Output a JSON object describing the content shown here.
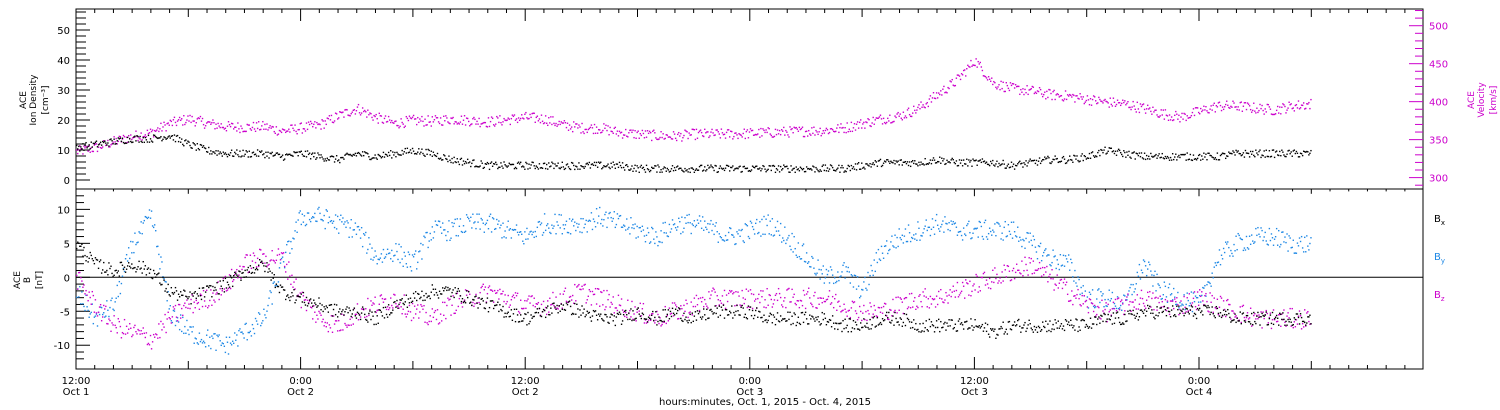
{
  "chart_data": [
    {
      "type": "scatter",
      "panel": "top",
      "ylabel_left": [
        "ACE",
        "Ion Density",
        "[cm⁻³]"
      ],
      "ylabel_right": [
        "ACE",
        "Velocity",
        "[km/s]"
      ],
      "ylim_left": [
        -3,
        57
      ],
      "ylim_right": [
        285,
        522
      ],
      "yticks_left": [
        0,
        10,
        20,
        30,
        40,
        50
      ],
      "yticks_right": [
        300,
        350,
        400,
        450,
        500
      ],
      "colors": {
        "density": "#000000",
        "velocity": "#cc00cc"
      },
      "series": [
        {
          "axis": "left",
          "x_hours": [
            0,
            1,
            2,
            3,
            4,
            5,
            6,
            7,
            8,
            9,
            10,
            11,
            12,
            13,
            14,
            15,
            16,
            17,
            18,
            19,
            20,
            21,
            22,
            23,
            24,
            25,
            26,
            27,
            28,
            29,
            30,
            31,
            32,
            33,
            34,
            35,
            36,
            37,
            38,
            39,
            40,
            41,
            42,
            43,
            44,
            45,
            46,
            47,
            48,
            49,
            50,
            51,
            52,
            53,
            54,
            55,
            56,
            57,
            58,
            59,
            60,
            61,
            62,
            63,
            64,
            65,
            66
          ],
          "values": [
            11,
            12,
            13,
            14,
            14,
            15,
            12,
            10,
            9,
            9,
            9,
            8,
            9,
            8,
            7,
            9,
            8,
            9,
            10,
            9,
            7,
            6,
            5,
            5,
            5,
            5,
            5,
            5,
            5,
            5,
            4,
            4,
            4,
            4,
            4,
            4,
            4,
            4,
            4,
            4,
            4,
            4,
            5,
            6,
            6,
            6,
            7,
            6,
            6,
            6,
            5,
            6,
            7,
            7,
            8,
            10,
            9,
            8,
            8,
            8,
            8,
            8,
            9,
            9,
            9,
            9,
            9
          ]
        },
        {
          "axis": "right",
          "x_hours": [
            0,
            1,
            2,
            3,
            4,
            5,
            6,
            7,
            8,
            9,
            10,
            11,
            12,
            13,
            14,
            15,
            16,
            17,
            18,
            19,
            20,
            21,
            22,
            23,
            24,
            25,
            26,
            27,
            28,
            29,
            30,
            31,
            32,
            33,
            34,
            35,
            36,
            37,
            38,
            39,
            40,
            41,
            42,
            43,
            44,
            45,
            46,
            47,
            48,
            49,
            50,
            51,
            52,
            53,
            54,
            55,
            56,
            57,
            58,
            59,
            60,
            61,
            62,
            63,
            64,
            65,
            66
          ],
          "values": [
            335,
            340,
            348,
            355,
            360,
            372,
            378,
            372,
            368,
            367,
            368,
            362,
            366,
            370,
            382,
            392,
            380,
            372,
            376,
            375,
            378,
            376,
            374,
            377,
            380,
            378,
            370,
            366,
            366,
            360,
            358,
            356,
            355,
            358,
            358,
            358,
            359,
            360,
            361,
            362,
            363,
            366,
            372,
            378,
            382,
            392,
            410,
            428,
            455,
            425,
            418,
            415,
            410,
            408,
            404,
            400,
            398,
            392,
            385,
            380,
            388,
            395,
            395,
            392,
            390,
            395,
            398
          ]
        }
      ]
    },
    {
      "type": "scatter",
      "panel": "bottom",
      "ylabel": [
        "ACE",
        "B",
        "[nT]"
      ],
      "ylim": [
        -13.5,
        13
      ],
      "yticks": [
        -10,
        -5,
        0,
        5,
        10
      ],
      "x_tick_labels": [
        {
          "time": "12:00",
          "date": "Oct 1"
        },
        {
          "time": "0:00",
          "date": "Oct 2"
        },
        {
          "time": "12:00",
          "date": "Oct 2"
        },
        {
          "time": "0:00",
          "date": "Oct 3"
        },
        {
          "time": "12:00",
          "date": "Oct 3"
        },
        {
          "time": "0:00",
          "date": "Oct 4"
        }
      ],
      "series": [
        {
          "name": "Bx",
          "color": "#000000",
          "x_hours": [
            0,
            1,
            2,
            3,
            4,
            5,
            6,
            7,
            8,
            9,
            10,
            11,
            12,
            13,
            14,
            15,
            16,
            17,
            18,
            19,
            20,
            21,
            22,
            23,
            24,
            25,
            26,
            27,
            28,
            29,
            30,
            31,
            32,
            33,
            34,
            35,
            36,
            37,
            38,
            39,
            40,
            41,
            42,
            43,
            44,
            45,
            46,
            47,
            48,
            49,
            50,
            51,
            52,
            53,
            54,
            55,
            56,
            57,
            58,
            59,
            60,
            61,
            62,
            63,
            64,
            65,
            66
          ],
          "values": [
            5,
            2,
            1,
            2,
            1,
            -2,
            -3,
            -2,
            -1,
            1,
            2,
            -2,
            -3,
            -4,
            -5,
            -5,
            -6,
            -4,
            -3,
            -2,
            -2,
            -3,
            -4,
            -5,
            -6,
            -5,
            -4,
            -5,
            -6,
            -6,
            -5,
            -6,
            -5,
            -6,
            -5,
            -5,
            -5,
            -6,
            -6,
            -6,
            -6,
            -7,
            -7,
            -6,
            -6,
            -7,
            -7,
            -7,
            -7,
            -8,
            -7,
            -7,
            -7,
            -7,
            -7,
            -6,
            -6,
            -5,
            -5,
            -5,
            -5,
            -5,
            -6,
            -6,
            -6,
            -6,
            -6
          ]
        },
        {
          "name": "By",
          "color": "#1e88e5",
          "x_hours": [
            0,
            1,
            2,
            3,
            4,
            5,
            6,
            7,
            8,
            9,
            10,
            11,
            12,
            13,
            14,
            15,
            16,
            17,
            18,
            19,
            20,
            21,
            22,
            23,
            24,
            25,
            26,
            27,
            28,
            29,
            30,
            31,
            32,
            33,
            34,
            35,
            36,
            37,
            38,
            39,
            40,
            41,
            42,
            43,
            44,
            45,
            46,
            47,
            48,
            49,
            50,
            51,
            52,
            53,
            54,
            55,
            56,
            57,
            58,
            59,
            60,
            61,
            62,
            63,
            64,
            65,
            66
          ],
          "values": [
            -2,
            -6,
            -4,
            5,
            9,
            -5,
            -8,
            -9,
            -10,
            -8,
            -6,
            2,
            9,
            9,
            8,
            7,
            3,
            4,
            2,
            7,
            7,
            8,
            8,
            7,
            6,
            8,
            8,
            8,
            9,
            8,
            7,
            6,
            8,
            8,
            7,
            6,
            7,
            8,
            6,
            3,
            0,
            1,
            -2,
            4,
            6,
            7,
            8,
            7,
            7,
            7,
            7,
            5,
            3,
            2,
            -3,
            -3,
            -4,
            2,
            -2,
            -3,
            -4,
            3,
            5,
            6,
            6,
            5,
            5
          ]
        },
        {
          "name": "Bz",
          "color": "#cc00cc",
          "x_hours": [
            0,
            1,
            2,
            3,
            4,
            5,
            6,
            7,
            8,
            9,
            10,
            11,
            12,
            13,
            14,
            15,
            16,
            17,
            18,
            19,
            20,
            21,
            22,
            23,
            24,
            25,
            26,
            27,
            28,
            29,
            30,
            31,
            32,
            33,
            34,
            35,
            36,
            37,
            38,
            39,
            40,
            41,
            42,
            43,
            44,
            45,
            46,
            47,
            48,
            49,
            50,
            51,
            52,
            53,
            54,
            55,
            56,
            57,
            58,
            59,
            60,
            61,
            62,
            63,
            64,
            65,
            66
          ],
          "values": [
            0,
            -4,
            -7,
            -8,
            -9,
            -6,
            -4,
            -3,
            -1,
            2,
            3,
            3,
            -3,
            -6,
            -7,
            -5,
            -4,
            -3,
            -5,
            -6,
            -4,
            -3,
            -2,
            -3,
            -4,
            -4,
            -3,
            -2,
            -3,
            -4,
            -5,
            -6,
            -5,
            -4,
            -3,
            -3,
            -3,
            -3,
            -3,
            -3,
            -3,
            -4,
            -5,
            -5,
            -4,
            -3,
            -3,
            -2,
            -1,
            0,
            1,
            2,
            0,
            -2,
            -4,
            -5,
            -4,
            -3,
            -4,
            -4,
            -3,
            -4,
            -5,
            -6,
            -6,
            -6,
            -6
          ]
        }
      ]
    }
  ],
  "legend": {
    "bx": {
      "base": "B",
      "sub": "x"
    },
    "by": {
      "base": "B",
      "sub": "y"
    },
    "bz": {
      "base": "B",
      "sub": "z"
    }
  },
  "footer": {
    "xlabel": "hours:minutes, Oct.  1, 2015 - Oct.  4, 2015"
  }
}
